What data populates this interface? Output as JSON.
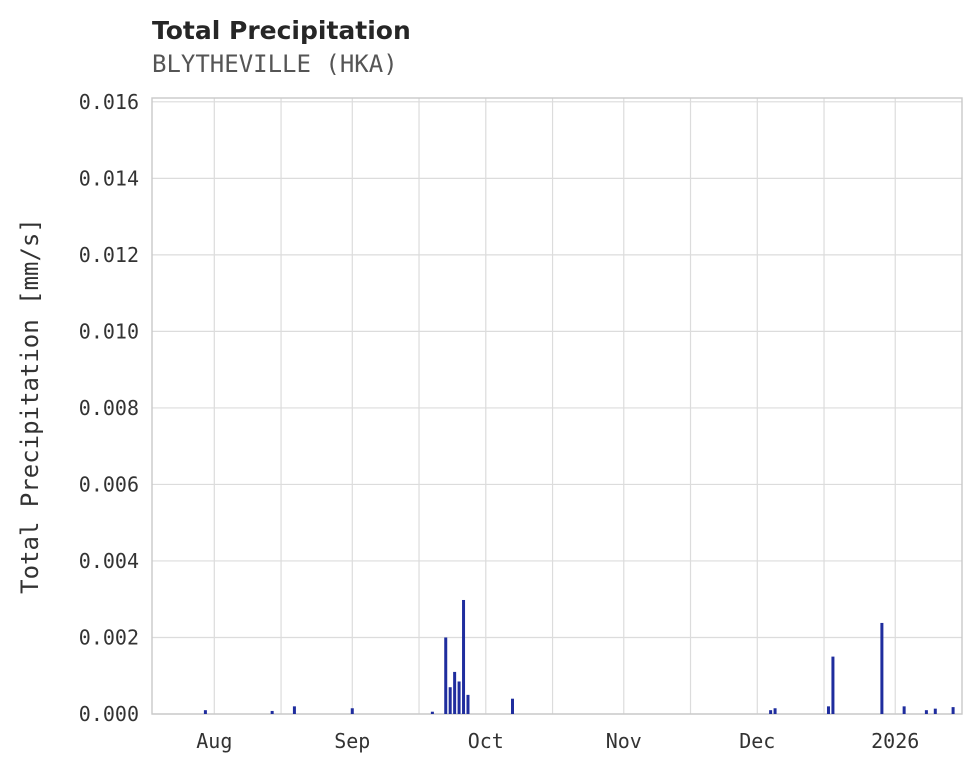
{
  "header": {
    "title": "Total Precipitation",
    "subtitle": "BLYTHEVILLE (HKA)"
  },
  "chart_data": {
    "type": "bar",
    "title": "Total Precipitation",
    "subtitle": "BLYTHEVILLE (HKA)",
    "xlabel": "",
    "ylabel": "Total Precipitation [mm/s]",
    "bar_color": "#1f2d9e",
    "grid_color": "#dcdcdc",
    "spine_color": "#c9c9c9",
    "tick_color": "#333333",
    "grid": true,
    "legend": "none",
    "x_domain": [
      "2025-07-18",
      "2026-01-16"
    ],
    "ylim": [
      0,
      0.0161
    ],
    "y_ticks": [
      {
        "value": 0.0,
        "label": "0.000"
      },
      {
        "value": 0.002,
        "label": "0.002"
      },
      {
        "value": 0.004,
        "label": "0.004"
      },
      {
        "value": 0.006,
        "label": "0.006"
      },
      {
        "value": 0.008,
        "label": "0.008"
      },
      {
        "value": 0.01,
        "label": "0.010"
      },
      {
        "value": 0.012,
        "label": "0.012"
      },
      {
        "value": 0.014,
        "label": "0.014"
      },
      {
        "value": 0.016,
        "label": "0.016"
      }
    ],
    "x_ticks": [
      {
        "date": "2025-08-01",
        "label": "Aug"
      },
      {
        "date": "2025-09-01",
        "label": "Sep"
      },
      {
        "date": "2025-10-01",
        "label": "Oct"
      },
      {
        "date": "2025-11-01",
        "label": "Nov"
      },
      {
        "date": "2025-12-01",
        "label": "Dec"
      },
      {
        "date": "2026-01-01",
        "label": "2026"
      }
    ],
    "x_gridlines": [
      "2025-08-01",
      "2025-08-16",
      "2025-09-01",
      "2025-09-16",
      "2025-10-01",
      "2025-10-16",
      "2025-11-01",
      "2025-11-16",
      "2025-12-01",
      "2025-12-16",
      "2026-01-01",
      "2026-01-16"
    ],
    "points": [
      {
        "date": "2025-07-30",
        "value": 0.0001
      },
      {
        "date": "2025-08-14",
        "value": 8e-05
      },
      {
        "date": "2025-08-19",
        "value": 0.0002
      },
      {
        "date": "2025-09-01",
        "value": 0.00015
      },
      {
        "date": "2025-09-19",
        "value": 6e-05
      },
      {
        "date": "2025-09-22",
        "value": 0.002
      },
      {
        "date": "2025-09-23",
        "value": 0.0007
      },
      {
        "date": "2025-09-24",
        "value": 0.0011
      },
      {
        "date": "2025-09-25",
        "value": 0.00085
      },
      {
        "date": "2025-09-26",
        "value": 0.00298
      },
      {
        "date": "2025-09-27",
        "value": 0.0005
      },
      {
        "date": "2025-10-07",
        "value": 0.0004
      },
      {
        "date": "2025-12-04",
        "value": 0.0001
      },
      {
        "date": "2025-12-05",
        "value": 0.00015
      },
      {
        "date": "2025-12-17",
        "value": 0.0002
      },
      {
        "date": "2025-12-18",
        "value": 0.0015
      },
      {
        "date": "2025-12-29",
        "value": 0.00238
      },
      {
        "date": "2026-01-03",
        "value": 0.0002
      },
      {
        "date": "2026-01-08",
        "value": 0.0001
      },
      {
        "date": "2026-01-10",
        "value": 0.00014
      },
      {
        "date": "2026-01-14",
        "value": 0.00018
      }
    ]
  }
}
